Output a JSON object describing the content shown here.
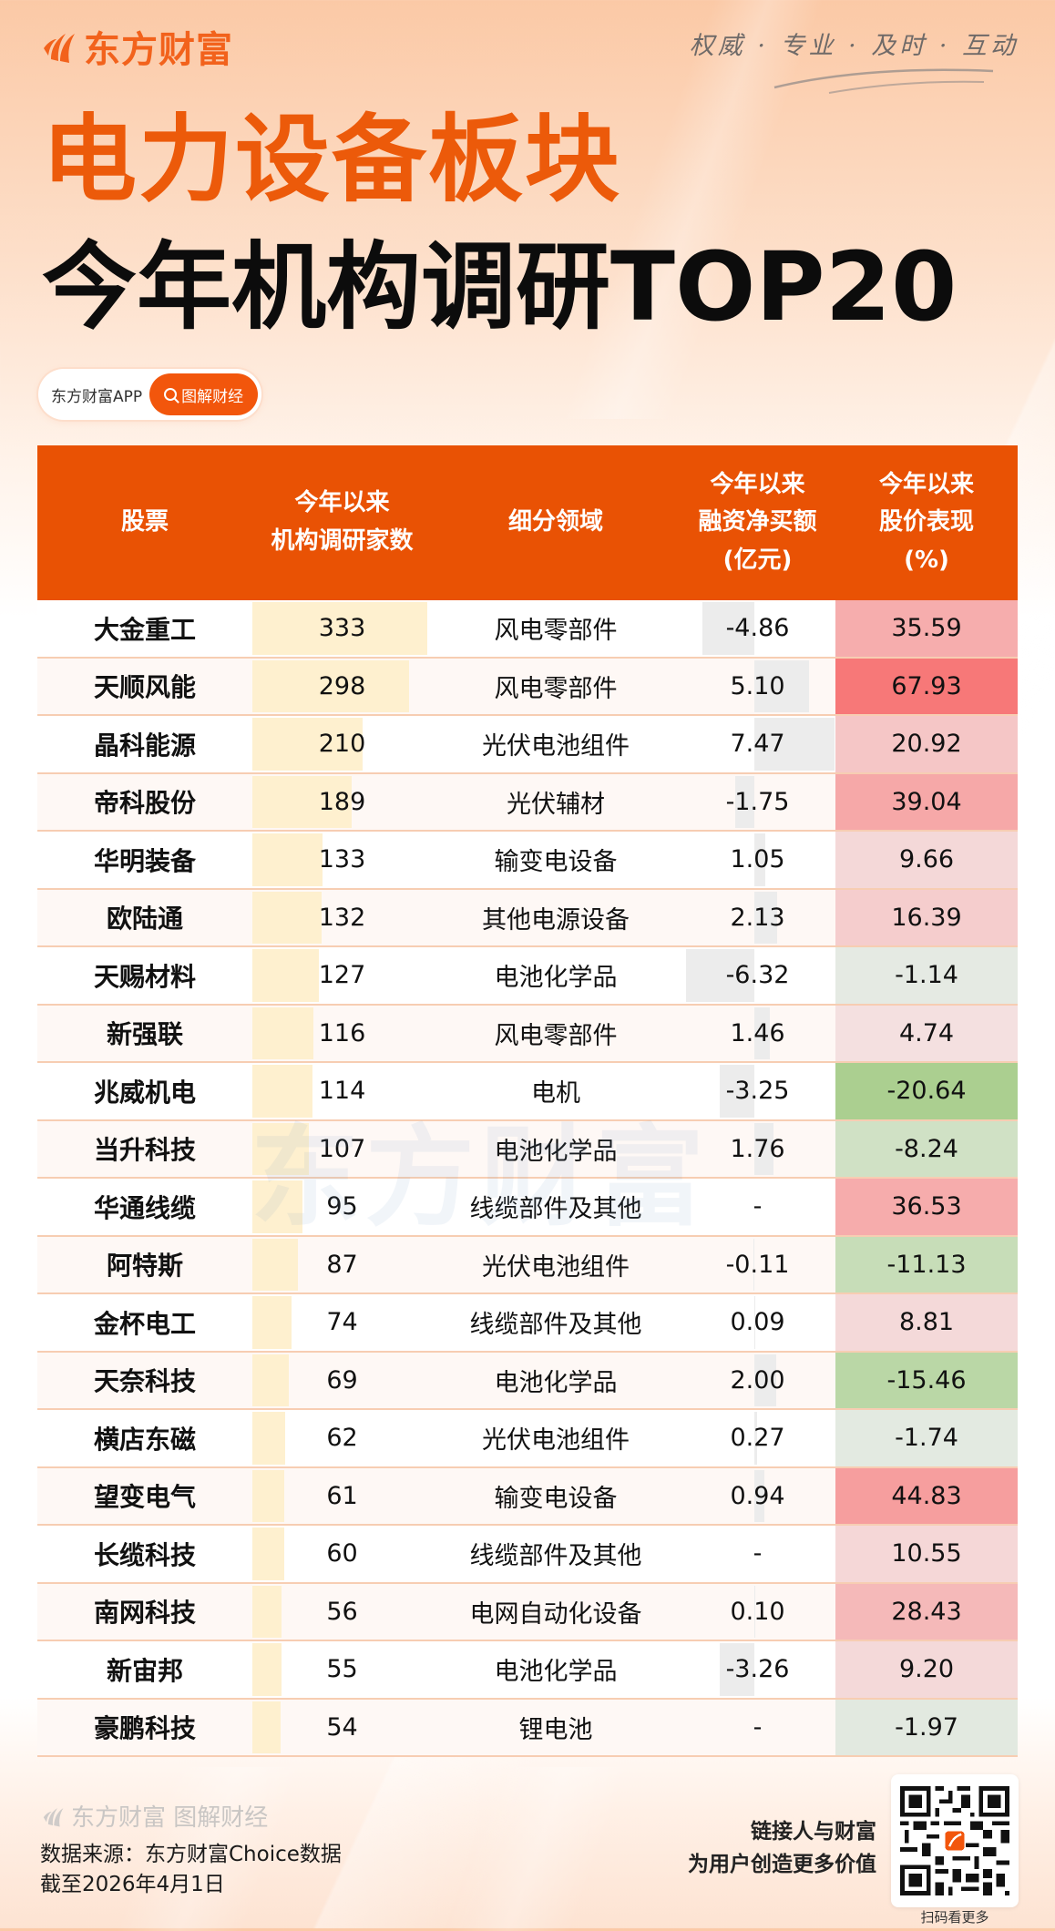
{
  "brand": {
    "logo_text": "东方财富",
    "slogan": "权威 · 专业 · 及时 · 互动",
    "accent_color": "#ec5a0a",
    "header_color": "#e95204"
  },
  "title": {
    "line1": "电力设备板块",
    "line2": "今年机构调研TOP20"
  },
  "pill": {
    "app_label": "东方财富APP",
    "button_label": "图解财经"
  },
  "table": {
    "headers": [
      "股票",
      "今年以来\n机构调研家数",
      "细分领域",
      "今年以来\n融资净买额\n(亿元)",
      "今年以来\n股价表现\n(%)"
    ],
    "rows": [
      {
        "name": "大金重工",
        "surveys": "333",
        "sector": "风电零部件",
        "financing": "-4.86",
        "performance": "35.59"
      },
      {
        "name": "天顺风能",
        "surveys": "298",
        "sector": "风电零部件",
        "financing": "5.10",
        "performance": "67.93"
      },
      {
        "name": "晶科能源",
        "surveys": "210",
        "sector": "光伏电池组件",
        "financing": "7.47",
        "performance": "20.92"
      },
      {
        "name": "帝科股份",
        "surveys": "189",
        "sector": "光伏辅材",
        "financing": "-1.75",
        "performance": "39.04"
      },
      {
        "name": "华明装备",
        "surveys": "133",
        "sector": "输变电设备",
        "financing": "1.05",
        "performance": "9.66"
      },
      {
        "name": "欧陆通",
        "surveys": "132",
        "sector": "其他电源设备",
        "financing": "2.13",
        "performance": "16.39"
      },
      {
        "name": "天赐材料",
        "surveys": "127",
        "sector": "电池化学品",
        "financing": "-6.32",
        "performance": "-1.14"
      },
      {
        "name": "新强联",
        "surveys": "116",
        "sector": "风电零部件",
        "financing": "1.46",
        "performance": "4.74"
      },
      {
        "name": "兆威机电",
        "surveys": "114",
        "sector": "电机",
        "financing": "-3.25",
        "performance": "-20.64"
      },
      {
        "name": "当升科技",
        "surveys": "107",
        "sector": "电池化学品",
        "financing": "1.76",
        "performance": "-8.24"
      },
      {
        "name": "华通线缆",
        "surveys": "95",
        "sector": "线缆部件及其他",
        "financing": "-",
        "performance": "36.53"
      },
      {
        "name": "阿特斯",
        "surveys": "87",
        "sector": "光伏电池组件",
        "financing": "-0.11",
        "performance": "-11.13"
      },
      {
        "name": "金杯电工",
        "surveys": "74",
        "sector": "线缆部件及其他",
        "financing": "0.09",
        "performance": "8.81"
      },
      {
        "name": "天奈科技",
        "surveys": "69",
        "sector": "电池化学品",
        "financing": "2.00",
        "performance": "-15.46"
      },
      {
        "name": "横店东磁",
        "surveys": "62",
        "sector": "光伏电池组件",
        "financing": "0.27",
        "performance": "-1.74"
      },
      {
        "name": "望变电气",
        "surveys": "61",
        "sector": "输变电设备",
        "financing": "0.94",
        "performance": "44.83"
      },
      {
        "name": "长缆科技",
        "surveys": "60",
        "sector": "线缆部件及其他",
        "financing": "-",
        "performance": "10.55"
      },
      {
        "name": "南网科技",
        "surveys": "56",
        "sector": "电网自动化设备",
        "financing": "0.10",
        "performance": "28.43"
      },
      {
        "name": "新宙邦",
        "surveys": "55",
        "sector": "电池化学品",
        "financing": "-3.26",
        "performance": "9.20"
      },
      {
        "name": "豪鹏科技",
        "surveys": "54",
        "sector": "锂电池",
        "financing": "-",
        "performance": "-1.97"
      }
    ]
  },
  "watermark": "东方财富",
  "footer": {
    "brand": "东方财富 图解财经",
    "source": "数据来源：东方财富Choice数据",
    "date": "截至2026年4月1日",
    "slogan_line1": "链接人与财富",
    "slogan_line2": "为用户创造更多价值",
    "qr_caption": "扫码看更多"
  },
  "chart_data": {
    "type": "table",
    "title": "电力设备板块 今年机构调研TOP20",
    "columns": [
      "股票",
      "今年以来机构调研家数",
      "细分领域",
      "今年以来融资净买额(亿元)",
      "今年以来股价表现(%)"
    ],
    "categories": [
      "大金重工",
      "天顺风能",
      "晶科能源",
      "帝科股份",
      "华明装备",
      "欧陆通",
      "天赐材料",
      "新强联",
      "兆威机电",
      "当升科技",
      "华通线缆",
      "阿特斯",
      "金杯电工",
      "天奈科技",
      "横店东磁",
      "望变电气",
      "长缆科技",
      "南网科技",
      "新宙邦",
      "豪鹏科技"
    ],
    "series": [
      {
        "name": "今年以来机构调研家数",
        "values": [
          333,
          298,
          210,
          189,
          133,
          132,
          127,
          116,
          114,
          107,
          95,
          87,
          74,
          69,
          62,
          61,
          60,
          56,
          55,
          54
        ]
      },
      {
        "name": "今年以来融资净买额(亿元)",
        "values": [
          -4.86,
          5.1,
          7.47,
          -1.75,
          1.05,
          2.13,
          -6.32,
          1.46,
          -3.25,
          1.76,
          null,
          -0.11,
          0.09,
          2.0,
          0.27,
          0.94,
          null,
          0.1,
          -3.26,
          null
        ]
      },
      {
        "name": "今年以来股价表现(%)",
        "values": [
          35.59,
          67.93,
          20.92,
          39.04,
          9.66,
          16.39,
          -1.14,
          4.74,
          -20.64,
          -8.24,
          36.53,
          -11.13,
          8.81,
          -15.46,
          -1.74,
          44.83,
          10.55,
          28.43,
          9.2,
          -1.97
        ]
      }
    ],
    "sectors": [
      "风电零部件",
      "风电零部件",
      "光伏电池组件",
      "光伏辅材",
      "输变电设备",
      "其他电源设备",
      "电池化学品",
      "风电零部件",
      "电机",
      "电池化学品",
      "线缆部件及其他",
      "光伏电池组件",
      "线缆部件及其他",
      "电池化学品",
      "光伏电池组件",
      "输变电设备",
      "线缆部件及其他",
      "电网自动化设备",
      "电池化学品",
      "锂电池"
    ],
    "notes": "Survey count shown as in-cell yellow data bars; financing shown as gray diverging bars around zero; performance shown as red/green heatmap.",
    "source": "东方财富Choice数据",
    "as_of": "截至2026年4月1日"
  }
}
